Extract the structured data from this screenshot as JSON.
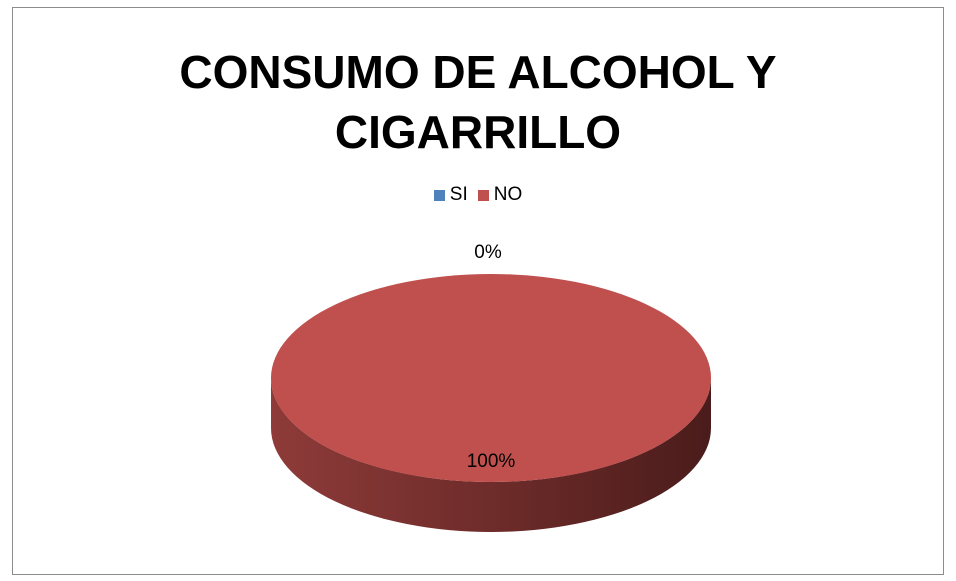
{
  "chart_data": {
    "type": "pie",
    "title": "CONSUMO DE ALCOHOL Y CIGARRILLO",
    "title_lines": [
      "CONSUMO DE ALCOHOL Y",
      "CIGARRILLO"
    ],
    "categories": [
      "SI",
      "NO"
    ],
    "values": [
      0,
      100
    ],
    "data_labels": [
      "0%",
      "100%"
    ],
    "colors": [
      "#4f81bd",
      "#c0504d"
    ],
    "legend_position": "top",
    "style": "3d"
  }
}
